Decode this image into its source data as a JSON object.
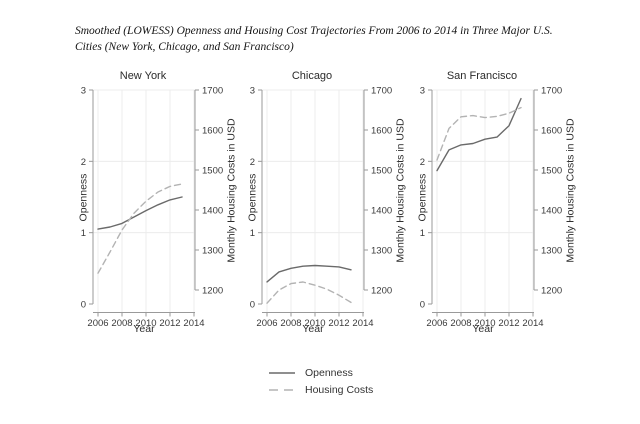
{
  "chart_data": {
    "type": "line",
    "title": "Smoothed (LOWESS) Openness and Housing Cost Trajectories From 2006 to 2014 in Three Major U.S. Cities (New York, Chicago, and San Francisco)",
    "xlabel": "Year",
    "ylabel_left": "Openness",
    "ylabel_right": "Monthly Housing Costs in USD",
    "x_ticks": [
      2006,
      2008,
      2010,
      2012,
      2014
    ],
    "x_range": [
      2006,
      2014
    ],
    "openness_ticks": [
      0,
      1,
      2,
      3
    ],
    "openness_range": [
      0,
      3
    ],
    "housing_ticks": [
      1200,
      1300,
      1400,
      1500,
      1600,
      1700
    ],
    "housing_range": [
      1200,
      1700
    ],
    "years": [
      2006,
      2007,
      2008,
      2009,
      2010,
      2011,
      2012,
      2013
    ],
    "legend": [
      "Openness",
      "Housing Costs"
    ],
    "legend_position": "bottom-center",
    "grid": true,
    "colors": {
      "openness_line": "#6a6a6a",
      "housing_line": "#b3b3b3",
      "axis": "#9a9a9a",
      "grid": "#ececec",
      "tick_text": "#3a3a3a"
    },
    "panels": [
      {
        "title": "New York",
        "series": [
          {
            "name": "Openness",
            "axis": "left",
            "style": "solid",
            "values": [
              1.05,
              1.08,
              1.13,
              1.22,
              1.31,
              1.39,
              1.46,
              1.5
            ]
          },
          {
            "name": "Housing Costs",
            "axis": "right",
            "style": "dashed",
            "values": [
              1242,
              1295,
              1350,
              1392,
              1422,
              1445,
              1459,
              1465
            ]
          }
        ]
      },
      {
        "title": "Chicago",
        "series": [
          {
            "name": "Openness",
            "axis": "left",
            "style": "solid",
            "values": [
              0.31,
              0.45,
              0.5,
              0.53,
              0.54,
              0.53,
              0.52,
              0.48
            ]
          },
          {
            "name": "Housing Costs",
            "axis": "right",
            "style": "dashed",
            "values": [
              1167,
              1200,
              1216,
              1220,
              1212,
              1202,
              1187,
              1169
            ]
          }
        ]
      },
      {
        "title": "San Francisco",
        "series": [
          {
            "name": "Openness",
            "axis": "left",
            "style": "solid",
            "values": [
              1.87,
              2.16,
              2.23,
              2.25,
              2.31,
              2.34,
              2.5,
              2.88
            ]
          },
          {
            "name": "Housing Costs",
            "axis": "right",
            "style": "dashed",
            "values": [
              1525,
              1604,
              1633,
              1636,
              1631,
              1634,
              1642,
              1656
            ]
          }
        ]
      }
    ]
  }
}
